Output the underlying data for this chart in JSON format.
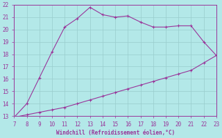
{
  "x": [
    7,
    8,
    9,
    10,
    11,
    12,
    13,
    14,
    15,
    16,
    17,
    18,
    19,
    20,
    21,
    22,
    23
  ],
  "y_upper": [
    12.9,
    14.0,
    16.1,
    18.2,
    20.2,
    20.9,
    21.8,
    21.2,
    21.0,
    21.1,
    20.6,
    20.2,
    20.2,
    20.3,
    20.3,
    19.0,
    17.9
  ],
  "y_lower": [
    12.9,
    13.1,
    13.3,
    13.5,
    13.7,
    14.0,
    14.3,
    14.6,
    14.9,
    15.2,
    15.5,
    15.8,
    16.1,
    16.4,
    16.7,
    17.3,
    17.9
  ],
  "line_color": "#993399",
  "bg_color": "#b3e8e8",
  "grid_color": "#99cccc",
  "xlabel": "Windchill (Refroidissement éolien,°C)",
  "xlabel_color": "#993399",
  "tick_color": "#993399",
  "xlim": [
    7,
    23
  ],
  "ylim": [
    13,
    22
  ],
  "xticks": [
    7,
    8,
    9,
    10,
    11,
    12,
    13,
    14,
    15,
    16,
    17,
    18,
    19,
    20,
    21,
    22,
    23
  ],
  "yticks": [
    13,
    14,
    15,
    16,
    17,
    18,
    19,
    20,
    21,
    22
  ]
}
